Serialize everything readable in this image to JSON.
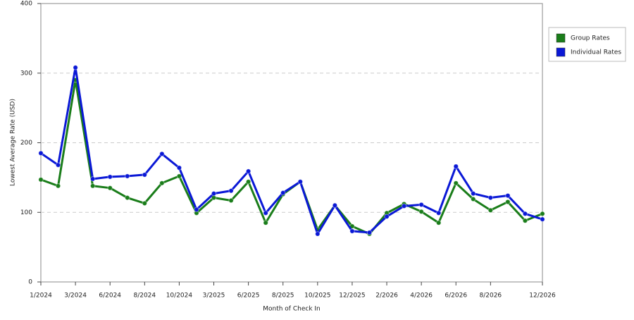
{
  "chart_data": {
    "type": "line",
    "x_label": "Month of Check In",
    "y_label": "Lowest Average Rate (USD)",
    "categories": [
      "1/2024",
      null,
      "3/2024",
      null,
      "6/2024",
      null,
      "8/2024",
      null,
      "10/2024",
      null,
      "3/2025",
      null,
      "6/2025",
      null,
      "8/2025",
      null,
      "10/2025",
      null,
      "12/2025",
      null,
      "2/2026",
      null,
      "4/2026",
      null,
      "6/2026",
      null,
      "8/2026",
      null,
      null,
      "12/2026"
    ],
    "series": [
      {
        "name": "Group Rates",
        "color": "#1a7d1a",
        "values": [
          147,
          138,
          290,
          138,
          135,
          121,
          113,
          142,
          152,
          99,
          121,
          117,
          144,
          85,
          126,
          144,
          75,
          110,
          80,
          69,
          99,
          112,
          101,
          85,
          142,
          119,
          103,
          115,
          88,
          98
        ]
      },
      {
        "name": "Individual Rates",
        "color": "#0a18d6",
        "values": [
          185,
          168,
          308,
          148,
          151,
          152,
          154,
          184,
          164,
          104,
          127,
          131,
          159,
          99,
          128,
          144,
          69,
          110,
          73,
          71,
          94,
          109,
          111,
          99,
          166,
          127,
          121,
          124,
          98,
          90
        ]
      }
    ],
    "ylim": [
      0,
      400
    ],
    "yticks": [
      0,
      100,
      200,
      300,
      400
    ],
    "grid": true,
    "legend": "right"
  }
}
